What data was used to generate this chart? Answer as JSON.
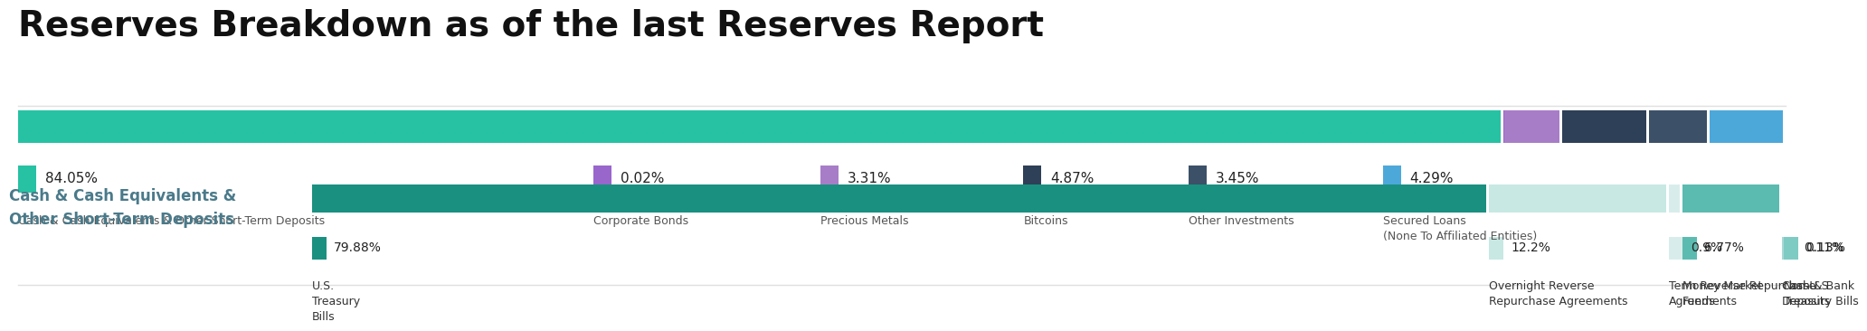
{
  "title": "Reserves Breakdown as of the last Reserves Report",
  "bg_color": "#ffffff",
  "title_color": "#111111",
  "divider_color": "#e0e0e0",
  "top_bar": {
    "segments": [
      {
        "label": "84.05%",
        "sublabel": "Cash & Cash Equivalents & Other Short-Term Deposits",
        "value": 84.05,
        "color": "#26C2A3"
      },
      {
        "label": "0.02%",
        "sublabel": "Corporate Bonds",
        "value": 0.02,
        "color": "#9966CC"
      },
      {
        "label": "3.31%",
        "sublabel": "Precious Metals",
        "value": 3.31,
        "color": "#A87DC8"
      },
      {
        "label": "4.87%",
        "sublabel": "Bitcoins",
        "value": 4.87,
        "color": "#2E4057"
      },
      {
        "label": "3.45%",
        "sublabel": "Other Investments",
        "value": 3.45,
        "color": "#3C5068"
      },
      {
        "label": "4.29%",
        "sublabel": "Secured Loans\n(None To Affiliated Entities)",
        "value": 4.29,
        "color": "#4DA8DA"
      }
    ]
  },
  "bottom_bar": {
    "left_label": "Cash & Cash Equivalents &\nOther Short-Term Deposits",
    "left_label_color": "#4A7A8A",
    "segments": [
      {
        "label": "79.88%",
        "sublabel": "U.S.\nTreasury\nBills",
        "value": 79.88,
        "color": "#1A9080"
      },
      {
        "label": "12.2%",
        "sublabel": "Overnight Reverse\nRepurchase Agreements",
        "value": 12.2,
        "color": "#C8E8E3"
      },
      {
        "label": "0.9%",
        "sublabel": "Term Reverse Repurchase\nAgreements",
        "value": 0.9,
        "color": "#D8EDEB"
      },
      {
        "label": "6.77%",
        "sublabel": "Money Market\nFunds",
        "value": 6.77,
        "color": "#5BBBB0"
      },
      {
        "label": "0.11%",
        "sublabel": "Cash & Bank\nDeposits",
        "value": 0.11,
        "color": "#A8D8D4"
      },
      {
        "label": "0.13%",
        "sublabel": "Non-U.S.\nTreasury Bills",
        "value": 0.13,
        "color": "#7ECBC4"
      }
    ]
  }
}
